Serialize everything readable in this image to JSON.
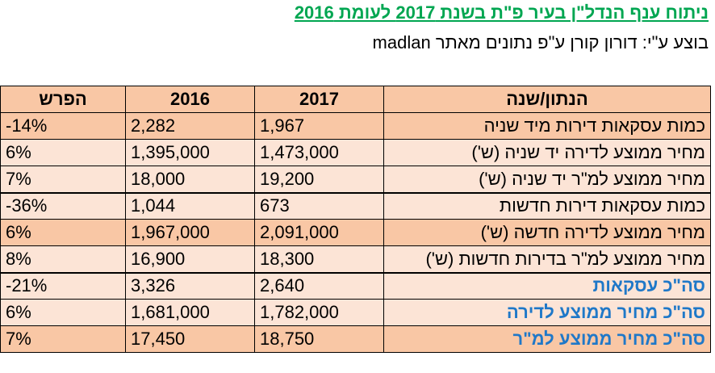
{
  "header": {
    "title": "ניתוח ענף הנדל\"ן בעיר פ\"ת בשנת 2017 לעומת 2016",
    "subtitle": "בוצע ע\"י: דורון קורן ע\"פ נתונים מאתר madlan"
  },
  "table": {
    "columns": [
      "הנתון/שנה",
      "2017",
      "2016",
      "הפרש"
    ],
    "rows": [
      {
        "label": "כמות עסקאות דירות מיד שניה",
        "v2017": "1,967",
        "v2016": "2,282",
        "diff": "-14%"
      },
      {
        "label": "מחיר ממוצע לדירה יד שניה (ש')",
        "v2017": "1,473,000",
        "v2016": "1,395,000",
        "diff": "6%"
      },
      {
        "label": "מחיר ממוצע למ\"ר יד שניה (ש')",
        "v2017": "19,200",
        "v2016": "18,000",
        "diff": "7%"
      },
      {
        "label": "כמות עסקאות דירות חדשות",
        "v2017": "673",
        "v2016": "1,044",
        "diff": "-36%"
      },
      {
        "label": "מחיר ממוצע לדירה חדשה (ש')",
        "v2017": "2,091,000",
        "v2016": "1,967,000",
        "diff": "6%"
      },
      {
        "label": "מחיר ממוצע למ\"ר בדירות חדשות (ש')",
        "v2017": "18,300",
        "v2016": "16,900",
        "diff": "8%"
      },
      {
        "label": "סה\"כ עסקאות",
        "v2017": "2,640",
        "v2016": "3,326",
        "diff": "-21%"
      },
      {
        "label": "סה\"כ מחיר ממוצע לדירה",
        "v2017": "1,782,000",
        "v2016": "1,681,000",
        "diff": "6%"
      },
      {
        "label": "סה\"כ מחיר ממוצע למ\"ר",
        "v2017": "18,750",
        "v2016": "17,450",
        "diff": "7%"
      }
    ]
  },
  "colors": {
    "title_green": "#00a651",
    "total_blue": "#1f78c8",
    "fill_dark": "#f9c7a5",
    "fill_light": "#fce4d6"
  }
}
